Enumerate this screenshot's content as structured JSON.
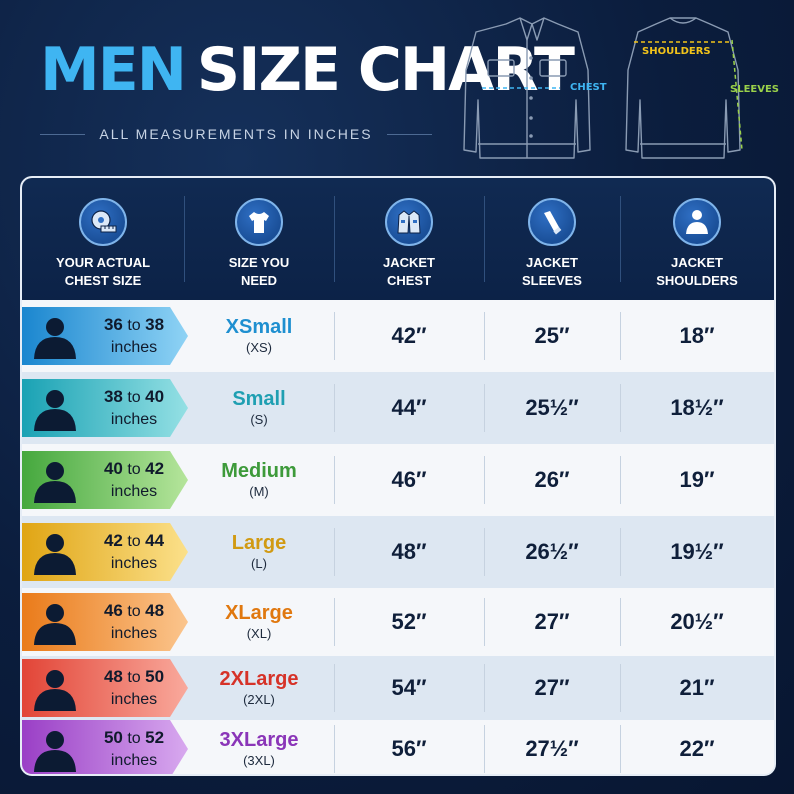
{
  "title": {
    "part1": "MEN",
    "part2": "SIZE CHART"
  },
  "subtitle": "ALL MEASUREMENTS IN INCHES",
  "diagram_labels": {
    "chest": "CHEST",
    "shoulders": "SHOULDERS",
    "sleeves": "SLEEVES"
  },
  "header": {
    "chest_size": "YOUR ACTUAL CHEST SIZE",
    "size": "SIZE YOU NEED",
    "jacket_chest": "JACKET CHEST",
    "jacket_sleeves": "JACKET SLEEVES",
    "jacket_shoulders": "JACKET SHOULDERS"
  },
  "icons": [
    "tape-measure-icon",
    "tshirt-icon",
    "jacket-icon",
    "sleeve-icon",
    "person-shoulders-icon"
  ],
  "rows": [
    {
      "from": "36",
      "to_word": "to",
      "to": "38",
      "unit": "inches",
      "size": "XSmall",
      "abbr": "(XS)",
      "chest": "42″",
      "sleeves": "25″",
      "shoulders": "18″",
      "color": "#1e8fd0",
      "arrow_from": "#1a86cf",
      "arrow_to": "#8fd3f5"
    },
    {
      "from": "38",
      "to_word": "to",
      "to": "40",
      "unit": "inches",
      "size": "Small",
      "abbr": "(S)",
      "chest": "44″",
      "sleeves": "25½″",
      "shoulders": "18½″",
      "color": "#1f9fb2",
      "arrow_from": "#1aa2b4",
      "arrow_to": "#94e0e4"
    },
    {
      "from": "40",
      "to_word": "to",
      "to": "42",
      "unit": "inches",
      "size": "Medium",
      "abbr": "(M)",
      "chest": "46″",
      "sleeves": "26″",
      "shoulders": "19″",
      "color": "#3d9a3a",
      "arrow_from": "#45a83e",
      "arrow_to": "#b5e59b"
    },
    {
      "from": "42",
      "to_word": "to",
      "to": "44",
      "unit": "inches",
      "size": "Large",
      "abbr": "(L)",
      "chest": "48″",
      "sleeves": "26½″",
      "shoulders": "19½″",
      "color": "#d19a12",
      "arrow_from": "#e0a514",
      "arrow_to": "#fbe08a"
    },
    {
      "from": "46",
      "to_word": "to",
      "to": "48",
      "unit": "inches",
      "size": "XLarge",
      "abbr": "(XL)",
      "chest": "52″",
      "sleeves": "27″",
      "shoulders": "20½″",
      "color": "#e0780f",
      "arrow_from": "#ea7b1a",
      "arrow_to": "#fbc58d"
    },
    {
      "from": "48",
      "to_word": "to",
      "to": "50",
      "unit": "inches",
      "size": "2XLarge",
      "abbr": "(2XL)",
      "chest": "54″",
      "sleeves": "27″",
      "shoulders": "21″",
      "color": "#d63228",
      "arrow_from": "#e24537",
      "arrow_to": "#f9a99c"
    },
    {
      "from": "50",
      "to_word": "to",
      "to": "52",
      "unit": "inches",
      "size": "3XLarge",
      "abbr": "(3XL)",
      "chest": "56″",
      "sleeves": "27½″",
      "shoulders": "22″",
      "color": "#8a35b8",
      "arrow_from": "#9a3fc6",
      "arrow_to": "#d8a9ef"
    }
  ]
}
